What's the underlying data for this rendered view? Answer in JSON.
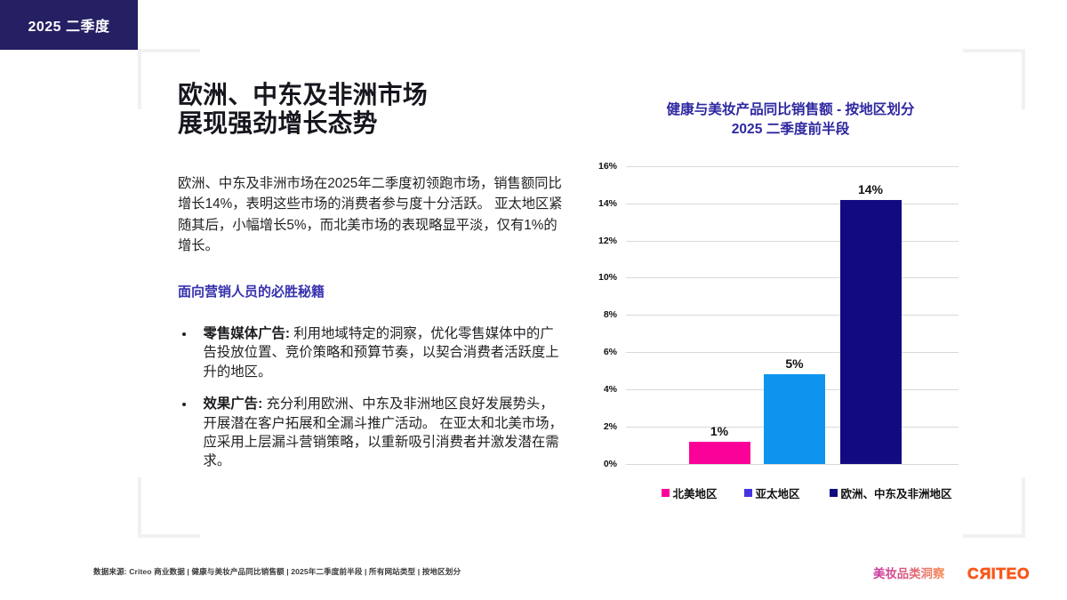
{
  "badge": {
    "label": "2025 二季度",
    "bg": "#251F63"
  },
  "left": {
    "title_lines": [
      "欧洲、中东及非洲市场",
      "展现强劲增长态势"
    ],
    "intro_lines": [
      "欧洲、中东及非洲市场在2025年二季度初领跑市场，销售额同比",
      "增长14%，表明这些市场的消费者参与度十分活跃。 亚太地区紧",
      "随其后，小幅增长5%，而北美市场的表现略显平淡，仅有1%的",
      "增长。"
    ],
    "subhead": "面向营销人员的必胜秘籍",
    "bullets": [
      {
        "lead": "零售媒体广告:",
        "lines": [
          " 利用地域特定的洞察，优化零售媒体中的广",
          "告投放位置、竞价策略和预算节奏，以契合消费者活跃度上",
          "升的地区。"
        ]
      },
      {
        "lead": "效果广告:",
        "lines": [
          " 充分利用欧洲、中东及非洲地区良好发展势头，",
          "开展潜在客户拓展和全漏斗推广活动。 在亚太和北美市场，",
          "应采用上层漏斗营销策略，以重新吸引消费者并激发潜在需",
          "求。"
        ]
      }
    ]
  },
  "chart_data": {
    "type": "bar",
    "title_lines": [
      "健康与美妆产品同比销售额 - 按地区划分",
      "2025 二季度前半段"
    ],
    "title": "健康与美妆产品同比销售额 - 按地区划分 2025 二季度前半段",
    "categories": [
      "北美地区",
      "亚太地区",
      "欧洲、中东及非洲地区"
    ],
    "values": [
      1,
      5,
      14
    ],
    "value_labels": [
      "1%",
      "5%",
      "14%"
    ],
    "plotted_values": [
      1.21,
      4.83,
      14.22
    ],
    "bar_colors": [
      "#FA0199",
      "#0E94EE",
      "#120A80"
    ],
    "legend_colors": [
      "#FA0199",
      "#4335DE",
      "#120A80"
    ],
    "ylim": [
      0,
      16
    ],
    "ytick_step": 2,
    "ytick_labels": [
      "0%",
      "2%",
      "4%",
      "6%",
      "8%",
      "10%",
      "12%",
      "14%",
      "16%"
    ],
    "grid": true,
    "legend_position": "bottom",
    "xlabel": "",
    "ylabel": ""
  },
  "footer": {
    "source": "数据来源: Criteo 商业数据 | 健康与美妆产品同比销售额 | 2025年二季度前半段 | 所有网站类型 | 按地区划分",
    "tagline": "美妆品类洞察",
    "brand": "CRITEO"
  }
}
